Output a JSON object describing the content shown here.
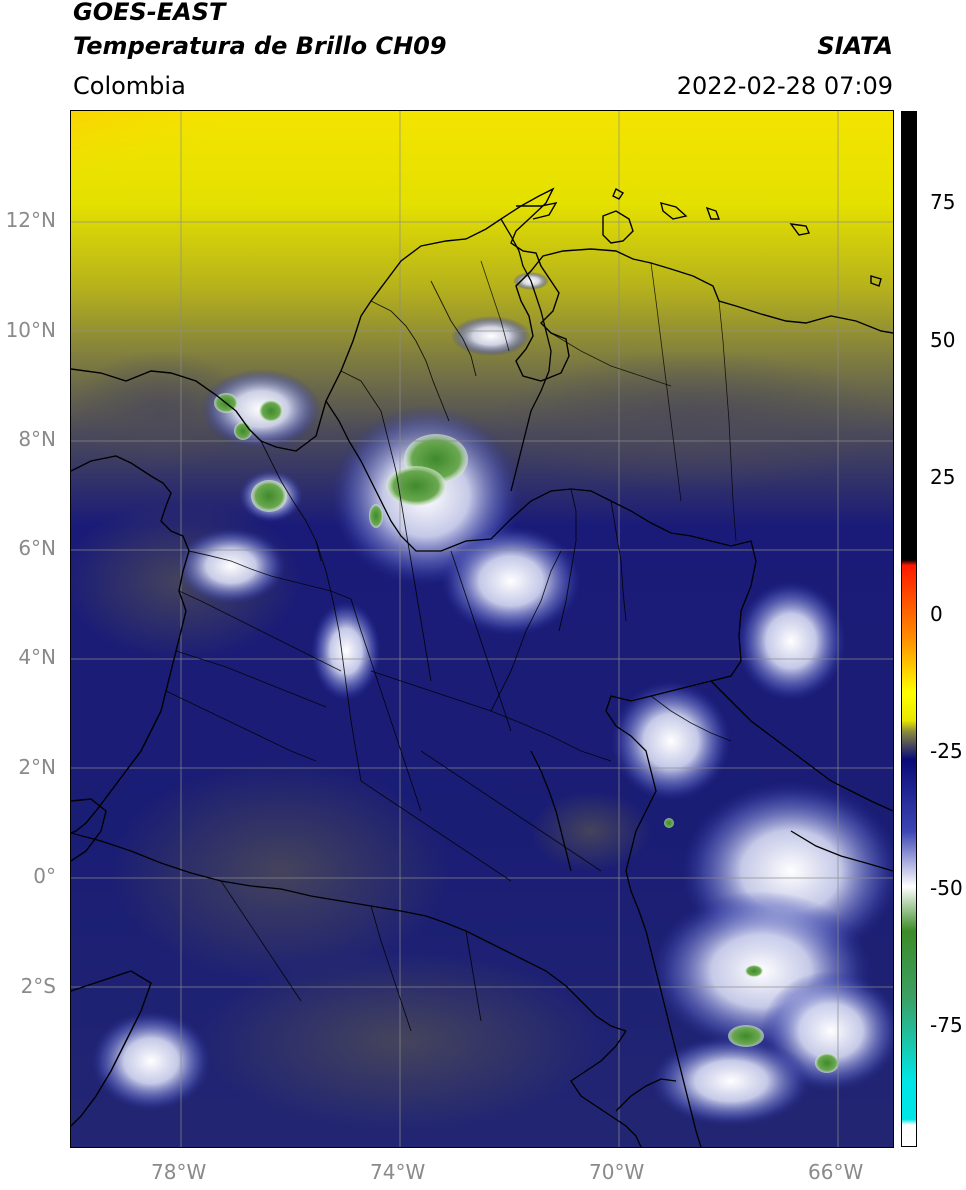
{
  "header": {
    "satellite": "GOES-EAST",
    "product": "Temperatura de Brillo CH09",
    "region": "Colombia",
    "agency": "SIATA",
    "datetime": "2022-02-28 07:09"
  },
  "axes": {
    "lat_labels": [
      "12°N",
      "10°N",
      "8°N",
      "6°N",
      "4°N",
      "2°N",
      "0°",
      "2°S"
    ],
    "lon_labels": [
      "78°W",
      "74°W",
      "70°W",
      "66°W"
    ]
  },
  "colorbar": {
    "tick_labels": [
      "75",
      "50",
      "25",
      "0",
      "-25",
      "-50",
      "-75"
    ],
    "stops": [
      {
        "value": 90,
        "color": "#000000"
      },
      {
        "value": 9,
        "color": "#000000"
      },
      {
        "value": 8,
        "color": "#ff1a00"
      },
      {
        "value": -5,
        "color": "#ff8c00"
      },
      {
        "value": -15,
        "color": "#ffff00"
      },
      {
        "value": -20,
        "color": "#e8e800"
      },
      {
        "value": -22,
        "color": "#8c8c3c"
      },
      {
        "value": -25,
        "color": "#3c3c64"
      },
      {
        "value": -27,
        "color": "#0a0a78"
      },
      {
        "value": -40,
        "color": "#3c46b4"
      },
      {
        "value": -50,
        "color": "#ffffff"
      },
      {
        "value": -58,
        "color": "#3c8c28"
      },
      {
        "value": -70,
        "color": "#3ca064"
      },
      {
        "value": -85,
        "color": "#00e6e6"
      },
      {
        "value": -92,
        "color": "#00e6e6"
      },
      {
        "value": -93,
        "color": "#ffffff"
      },
      {
        "value": -97,
        "color": "#ffffff"
      }
    ]
  }
}
